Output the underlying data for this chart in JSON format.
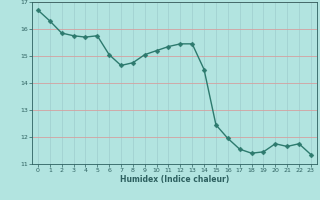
{
  "x": [
    0,
    1,
    2,
    3,
    4,
    5,
    6,
    7,
    8,
    9,
    10,
    11,
    12,
    13,
    14,
    15,
    16,
    17,
    18,
    19,
    20,
    21,
    22,
    23
  ],
  "y": [
    16.7,
    16.3,
    15.85,
    15.75,
    15.7,
    15.75,
    15.05,
    14.65,
    14.75,
    15.05,
    15.2,
    15.35,
    15.45,
    15.45,
    14.5,
    12.45,
    11.95,
    11.55,
    11.4,
    11.45,
    11.75,
    11.65,
    11.75,
    11.35
  ],
  "line_color": "#2d7a6e",
  "marker_color": "#2d7a6e",
  "bg_color": "#b2e4e0",
  "hgrid_color": "#d4a0a0",
  "vgrid_color": "#9ecece",
  "xlabel": "Humidex (Indice chaleur)",
  "ylim": [
    11,
    17
  ],
  "xlim": [
    -0.5,
    23.5
  ],
  "yticks": [
    11,
    12,
    13,
    14,
    15,
    16,
    17
  ],
  "xticks": [
    0,
    1,
    2,
    3,
    4,
    5,
    6,
    7,
    8,
    9,
    10,
    11,
    12,
    13,
    14,
    15,
    16,
    17,
    18,
    19,
    20,
    21,
    22,
    23
  ],
  "font_color": "#2d6060",
  "line_width": 1.0,
  "marker_size": 2.5
}
